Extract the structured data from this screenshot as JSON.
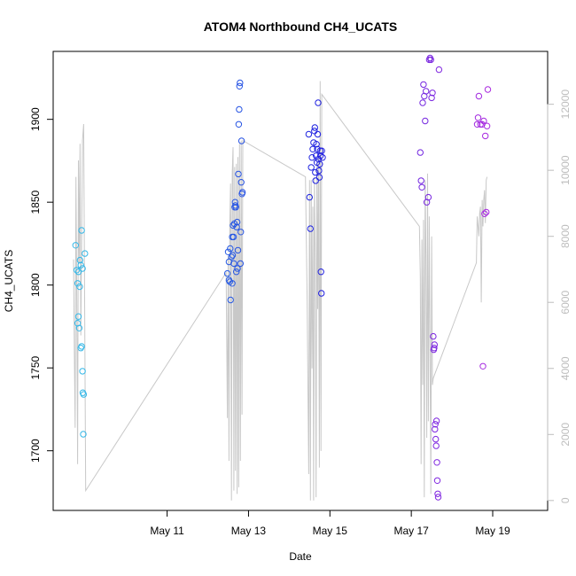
{
  "chart_data": {
    "type": "scatter",
    "title": "ATOM4 Northbound CH4_UCATS",
    "xlabel": "Date",
    "ylabel": "CH4_UCATS",
    "x_unit": "days after May 9, 2018 00:00",
    "x_ticks": [
      {
        "label": "May 11",
        "value": 2
      },
      {
        "label": "May 13",
        "value": 4
      },
      {
        "label": "May 15",
        "value": 6
      },
      {
        "label": "May 17",
        "value": 8
      },
      {
        "label": "May 19",
        "value": 10
      }
    ],
    "xlim": [
      -0.8,
      11.35
    ],
    "ylim": [
      1664,
      1941
    ],
    "y_ticks": [
      1700,
      1750,
      1800,
      1850,
      1900
    ],
    "y2_ticks": [
      0,
      2000,
      4000,
      6000,
      8000,
      10000,
      12000
    ],
    "y2lim": [
      -300,
      13600
    ],
    "grid": false,
    "points": [
      [
        -0.25,
        1824
      ],
      [
        -0.22,
        1809
      ],
      [
        -0.2,
        1801
      ],
      [
        -0.18,
        1781
      ],
      [
        -0.2,
        1777
      ],
      [
        -0.16,
        1774
      ],
      [
        -0.15,
        1799
      ],
      [
        -0.12,
        1762
      ],
      [
        -0.1,
        1763
      ],
      [
        -0.08,
        1810
      ],
      [
        -0.12,
        1812
      ],
      [
        -0.14,
        1815
      ],
      [
        -0.1,
        1833
      ],
      [
        -0.08,
        1748
      ],
      [
        -0.07,
        1735
      ],
      [
        -0.05,
        1734
      ],
      [
        -0.06,
        1710
      ],
      [
        -0.02,
        1819
      ],
      [
        -0.18,
        1808
      ],
      [
        3.48,
        1807
      ],
      [
        3.5,
        1820
      ],
      [
        3.52,
        1814
      ],
      [
        3.54,
        1802
      ],
      [
        3.55,
        1822
      ],
      [
        3.56,
        1791
      ],
      [
        3.58,
        1817
      ],
      [
        3.6,
        1801
      ],
      [
        3.61,
        1818
      ],
      [
        3.62,
        1836
      ],
      [
        3.63,
        1829
      ],
      [
        3.64,
        1813
      ],
      [
        3.65,
        1837
      ],
      [
        3.66,
        1847
      ],
      [
        3.67,
        1850
      ],
      [
        3.68,
        1848
      ],
      [
        3.69,
        1847
      ],
      [
        3.7,
        1808
      ],
      [
        3.71,
        1835
      ],
      [
        3.72,
        1838
      ],
      [
        3.73,
        1810
      ],
      [
        3.74,
        1821
      ],
      [
        3.75,
        1867
      ],
      [
        3.76,
        1897
      ],
      [
        3.77,
        1906
      ],
      [
        3.78,
        1920
      ],
      [
        3.79,
        1922
      ],
      [
        3.8,
        1813
      ],
      [
        3.81,
        1832
      ],
      [
        3.82,
        1862
      ],
      [
        3.83,
        1887
      ],
      [
        3.84,
        1855
      ],
      [
        3.85,
        1856
      ],
      [
        3.52,
        1803
      ],
      [
        3.6,
        1829
      ],
      [
        5.48,
        1891
      ],
      [
        5.5,
        1853
      ],
      [
        5.52,
        1834
      ],
      [
        5.54,
        1871
      ],
      [
        5.56,
        1877
      ],
      [
        5.58,
        1882
      ],
      [
        5.6,
        1886
      ],
      [
        5.62,
        1893
      ],
      [
        5.63,
        1895
      ],
      [
        5.64,
        1868
      ],
      [
        5.65,
        1863
      ],
      [
        5.66,
        1878
      ],
      [
        5.67,
        1885
      ],
      [
        5.68,
        1874
      ],
      [
        5.69,
        1882
      ],
      [
        5.7,
        1891
      ],
      [
        5.71,
        1910
      ],
      [
        5.72,
        1876
      ],
      [
        5.73,
        1869
      ],
      [
        5.74,
        1865
      ],
      [
        5.75,
        1873
      ],
      [
        5.76,
        1881
      ],
      [
        5.77,
        1878
      ],
      [
        5.78,
        1808
      ],
      [
        5.79,
        1795
      ],
      [
        5.8,
        1881
      ],
      [
        5.82,
        1877
      ],
      [
        8.22,
        1880
      ],
      [
        8.24,
        1863
      ],
      [
        8.26,
        1859
      ],
      [
        8.28,
        1910
      ],
      [
        8.3,
        1921
      ],
      [
        8.32,
        1914
      ],
      [
        8.34,
        1899
      ],
      [
        8.36,
        1917
      ],
      [
        8.38,
        1850
      ],
      [
        8.42,
        1853
      ],
      [
        8.44,
        1936
      ],
      [
        8.46,
        1937
      ],
      [
        8.48,
        1936
      ],
      [
        8.5,
        1913
      ],
      [
        8.52,
        1916
      ],
      [
        8.54,
        1769
      ],
      [
        8.55,
        1761
      ],
      [
        8.56,
        1762
      ],
      [
        8.57,
        1764
      ],
      [
        8.58,
        1713
      ],
      [
        8.59,
        1716
      ],
      [
        8.6,
        1707
      ],
      [
        8.61,
        1703
      ],
      [
        8.62,
        1718
      ],
      [
        8.63,
        1693
      ],
      [
        8.64,
        1682
      ],
      [
        8.65,
        1674
      ],
      [
        8.66,
        1672
      ],
      [
        8.68,
        1930
      ],
      [
        9.62,
        1897
      ],
      [
        9.64,
        1901
      ],
      [
        9.66,
        1914
      ],
      [
        9.7,
        1897
      ],
      [
        9.74,
        1897
      ],
      [
        9.76,
        1751
      ],
      [
        9.78,
        1899
      ],
      [
        9.8,
        1843
      ],
      [
        9.82,
        1890
      ],
      [
        9.84,
        1844
      ],
      [
        9.86,
        1896
      ],
      [
        9.88,
        1918
      ]
    ],
    "altitude_series": [
      [
        -0.3,
        7300
      ],
      [
        -0.28,
        4500
      ],
      [
        -0.26,
        2200
      ],
      [
        -0.24,
        9800
      ],
      [
        -0.22,
        6200
      ],
      [
        -0.2,
        1100
      ],
      [
        -0.18,
        10300
      ],
      [
        -0.16,
        7200
      ],
      [
        -0.14,
        10800
      ],
      [
        -0.12,
        5000
      ],
      [
        -0.08,
        10900
      ],
      [
        -0.05,
        11400
      ],
      [
        0.0,
        300
      ],
      [
        3.45,
        6900
      ],
      [
        3.48,
        2500
      ],
      [
        3.5,
        7400
      ],
      [
        3.52,
        1200
      ],
      [
        3.54,
        8300
      ],
      [
        3.56,
        9600
      ],
      [
        3.58,
        0
      ],
      [
        3.6,
        9900
      ],
      [
        3.62,
        10700
      ],
      [
        3.64,
        300
      ],
      [
        3.66,
        10100
      ],
      [
        3.68,
        900
      ],
      [
        3.7,
        10200
      ],
      [
        3.72,
        200
      ],
      [
        3.74,
        10400
      ],
      [
        3.76,
        400
      ],
      [
        3.78,
        10800
      ],
      [
        3.8,
        1200
      ],
      [
        3.82,
        10900
      ],
      [
        3.84,
        2600
      ],
      [
        3.86,
        10900
      ],
      [
        5.4,
        9800
      ],
      [
        5.44,
        6100
      ],
      [
        5.48,
        800
      ],
      [
        5.5,
        9700
      ],
      [
        5.52,
        0
      ],
      [
        5.54,
        9700
      ],
      [
        5.56,
        4000
      ],
      [
        5.58,
        8900
      ],
      [
        5.6,
        0
      ],
      [
        5.62,
        9800
      ],
      [
        5.64,
        7300
      ],
      [
        5.66,
        100
      ],
      [
        5.68,
        10200
      ],
      [
        5.7,
        5800
      ],
      [
        5.72,
        10400
      ],
      [
        5.74,
        1000
      ],
      [
        5.76,
        12700
      ],
      [
        5.78,
        1500
      ],
      [
        5.8,
        12300
      ],
      [
        8.2,
        8300
      ],
      [
        8.22,
        6800
      ],
      [
        8.24,
        1100
      ],
      [
        8.26,
        7900
      ],
      [
        8.28,
        3500
      ],
      [
        8.3,
        8500
      ],
      [
        8.32,
        100
      ],
      [
        8.34,
        9700
      ],
      [
        8.36,
        7300
      ],
      [
        8.38,
        1900
      ],
      [
        8.4,
        9900
      ],
      [
        8.42,
        2400
      ],
      [
        8.44,
        8600
      ],
      [
        8.46,
        4500
      ],
      [
        8.48,
        200
      ],
      [
        8.5,
        8000
      ],
      [
        8.52,
        3500
      ],
      [
        8.54,
        3700
      ],
      [
        9.6,
        7200
      ],
      [
        9.62,
        8600
      ],
      [
        9.64,
        8300
      ],
      [
        9.66,
        8000
      ],
      [
        9.68,
        8700
      ],
      [
        9.7,
        8900
      ],
      [
        9.72,
        6000
      ],
      [
        9.74,
        9100
      ],
      [
        9.76,
        8300
      ],
      [
        9.78,
        9100
      ],
      [
        9.8,
        9400
      ],
      [
        9.82,
        8400
      ],
      [
        9.84,
        9700
      ],
      [
        9.86,
        9800
      ]
    ],
    "colors": {
      "altitude_line": "#c8c8c8",
      "points_start": "#34b8e8",
      "points_mid": "#1f1fe0",
      "points_end": "#e030e0"
    }
  }
}
